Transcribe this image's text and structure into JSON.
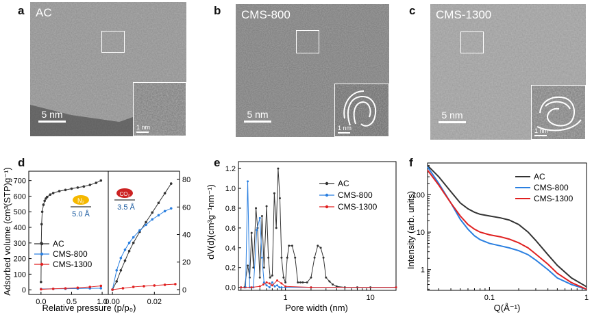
{
  "panels": {
    "a": {
      "letter": "a",
      "label": "AC",
      "scale": "5 nm",
      "inset_scale": "1 nm"
    },
    "b": {
      "letter": "b",
      "label": "CMS-800",
      "scale": "5 nm",
      "inset_scale": "1 nm"
    },
    "c": {
      "letter": "c",
      "label": "CMS-1300",
      "scale": "5 nm",
      "inset_scale": "1 nm"
    },
    "d": {
      "letter": "d"
    },
    "e": {
      "letter": "e"
    },
    "f": {
      "letter": "f"
    }
  },
  "colors": {
    "AC": "#333333",
    "CMS800": "#2a7fe0",
    "CMS1300": "#e02020"
  },
  "chart_data": [
    {
      "id": "d-left",
      "type": "scatter",
      "ylabel": "Adsorbed volume (cm³(STP)g⁻¹)",
      "xlabel": "Relative pressure (p/p₀)",
      "xlim": [
        -0.2,
        1.1
      ],
      "ylim": [
        -30,
        760
      ],
      "xticks": [
        0.0,
        0.5,
        1.0
      ],
      "yticks": [
        0,
        100,
        200,
        300,
        400,
        500,
        600,
        700
      ],
      "badge": {
        "molecule": "N₂",
        "size": "5.0 Å"
      },
      "legend": [
        "AC",
        "CMS-800",
        "CMS-1300"
      ],
      "series": [
        {
          "name": "AC",
          "x": [
            0.0,
            0.005,
            0.01,
            0.02,
            0.04,
            0.06,
            0.08,
            0.1,
            0.15,
            0.2,
            0.3,
            0.4,
            0.5,
            0.6,
            0.7,
            0.8,
            0.9,
            0.98
          ],
          "y": [
            50,
            300,
            420,
            500,
            545,
            570,
            585,
            595,
            610,
            620,
            632,
            640,
            648,
            655,
            662,
            672,
            685,
            700
          ]
        },
        {
          "name": "CMS-800",
          "x": [
            0.0,
            0.2,
            0.4,
            0.6,
            0.8,
            0.98
          ],
          "y": [
            5,
            6,
            7,
            8,
            9,
            10
          ]
        },
        {
          "name": "CMS-1300",
          "x": [
            0.0,
            0.2,
            0.4,
            0.6,
            0.8,
            0.98
          ],
          "y": [
            3,
            6,
            9,
            13,
            18,
            25
          ]
        }
      ]
    },
    {
      "id": "d-right",
      "type": "line",
      "xlim": [
        -0.002,
        0.032
      ],
      "ylim": [
        -3.5,
        86
      ],
      "xticks": [
        0.0,
        0.02
      ],
      "yticks": [
        0,
        20,
        40,
        60,
        80
      ],
      "badge": {
        "molecule": "CO₂",
        "size": "3.5 Å"
      },
      "series": [
        {
          "name": "AC",
          "x": [
            0.0,
            0.002,
            0.004,
            0.006,
            0.008,
            0.01,
            0.013,
            0.016,
            0.019,
            0.022,
            0.025,
            0.028
          ],
          "y": [
            0,
            6,
            14,
            21,
            28,
            34,
            42,
            49,
            56,
            63,
            70,
            77
          ]
        },
        {
          "name": "CMS-800",
          "x": [
            0.0,
            0.002,
            0.004,
            0.006,
            0.008,
            0.01,
            0.013,
            0.016,
            0.019,
            0.022,
            0.025,
            0.028
          ],
          "y": [
            0,
            14,
            23,
            29,
            34,
            38,
            43,
            47,
            51,
            54,
            57,
            59
          ]
        },
        {
          "name": "CMS-1300",
          "x": [
            0.0,
            0.005,
            0.01,
            0.015,
            0.02,
            0.025,
            0.03
          ],
          "y": [
            0,
            1,
            2,
            2.5,
            3,
            3.5,
            4
          ]
        }
      ]
    },
    {
      "id": "e",
      "type": "line",
      "ylabel": "dV(d)(cm³g⁻¹nm⁻¹)",
      "xlabel": "Pore width (nm)",
      "xscale": "log",
      "xlim": [
        0.28,
        20
      ],
      "ylim": [
        -0.03,
        1.27
      ],
      "xticks": [
        1,
        10
      ],
      "yticks": [
        0.0,
        0.2,
        0.4,
        0.6,
        0.8,
        1.0,
        1.2
      ],
      "legend": [
        "AC",
        "CMS-800",
        "CMS-1300"
      ],
      "series": [
        {
          "name": "AC",
          "x": [
            0.33,
            0.36,
            0.38,
            0.4,
            0.42,
            0.45,
            0.47,
            0.5,
            0.53,
            0.56,
            0.6,
            0.63,
            0.66,
            0.7,
            0.74,
            0.78,
            0.82,
            0.86,
            0.9,
            0.95,
            1.0,
            1.05,
            1.1,
            1.2,
            1.3,
            1.4,
            1.5,
            1.6,
            1.8,
            2.0,
            2.2,
            2.4,
            2.6,
            2.8,
            3.0,
            3.3,
            3.6,
            4.0,
            5,
            7,
            10,
            20
          ],
          "y": [
            0.0,
            0.22,
            0.1,
            0.55,
            0.2,
            0.8,
            0.6,
            0.1,
            0.72,
            0.2,
            0.82,
            0.3,
            0.1,
            0.12,
            0.95,
            0.6,
            1.2,
            0.9,
            0.3,
            0.1,
            0.05,
            0.3,
            0.42,
            0.42,
            0.3,
            0.05,
            0.05,
            0.05,
            0.05,
            0.1,
            0.3,
            0.42,
            0.4,
            0.3,
            0.1,
            0.06,
            0.03,
            0.01,
            0.0,
            0.0,
            0.0,
            0.0
          ]
        },
        {
          "name": "CMS-800",
          "x": [
            0.3,
            0.34,
            0.36,
            0.38,
            0.42,
            0.46,
            0.5,
            0.53,
            0.56,
            0.6,
            0.65,
            0.7,
            0.75,
            0.8,
            0.85,
            0.9,
            1.0,
            2.0,
            20
          ],
          "y": [
            0.0,
            0.0,
            1.07,
            0.0,
            0.0,
            0.58,
            0.7,
            0.3,
            0.05,
            0.02,
            0.0,
            0.05,
            0.01,
            0.02,
            0.0,
            0.0,
            0.0,
            0.0,
            0.0
          ]
        },
        {
          "name": "CMS-1300",
          "x": [
            0.3,
            0.4,
            0.5,
            0.55,
            0.6,
            0.65,
            0.7,
            0.8,
            0.9,
            1.0,
            2.0,
            20
          ],
          "y": [
            0.0,
            0.0,
            0.01,
            0.03,
            0.05,
            0.04,
            0.02,
            0.07,
            0.04,
            0.01,
            0.0,
            0.0
          ]
        }
      ]
    },
    {
      "id": "f",
      "type": "line",
      "ylabel": "Intensity (arb. units)",
      "xlabel": "Q(Å⁻¹)",
      "xscale": "log",
      "yscale": "log",
      "xlim": [
        0.023,
        1.0
      ],
      "ylim": [
        0.28,
        700
      ],
      "xticks": [
        0.1,
        1
      ],
      "xtick_labels": [
        "0.1",
        "1"
      ],
      "yticks": [
        1,
        10,
        100
      ],
      "legend": [
        "AC",
        "CMS-800",
        "CMS-1300"
      ],
      "series": [
        {
          "name": "AC",
          "x": [
            0.023,
            0.03,
            0.04,
            0.05,
            0.06,
            0.07,
            0.08,
            0.1,
            0.13,
            0.16,
            0.2,
            0.25,
            0.3,
            0.4,
            0.5,
            0.7,
            1.0
          ],
          "y": [
            600,
            300,
            120,
            60,
            42,
            34,
            30,
            27,
            24,
            21,
            16,
            10,
            6,
            2.5,
            1.3,
            0.6,
            0.35
          ]
        },
        {
          "name": "CMS-800",
          "x": [
            0.023,
            0.03,
            0.04,
            0.05,
            0.06,
            0.07,
            0.08,
            0.1,
            0.13,
            0.16,
            0.2,
            0.25,
            0.3,
            0.4,
            0.5,
            0.7,
            1.0
          ],
          "y": [
            550,
            200,
            60,
            22,
            12,
            8,
            6.3,
            5,
            4.3,
            3.8,
            3.2,
            2.5,
            1.8,
            1.0,
            0.6,
            0.4,
            0.3
          ]
        },
        {
          "name": "CMS-1300",
          "x": [
            0.023,
            0.03,
            0.04,
            0.05,
            0.06,
            0.07,
            0.08,
            0.1,
            0.13,
            0.16,
            0.2,
            0.25,
            0.3,
            0.4,
            0.5,
            0.7,
            1.0
          ],
          "y": [
            450,
            180,
            60,
            27,
            16,
            12,
            10,
            8.5,
            7.5,
            6.5,
            5.2,
            3.8,
            2.6,
            1.4,
            0.8,
            0.45,
            0.3
          ]
        }
      ]
    }
  ]
}
